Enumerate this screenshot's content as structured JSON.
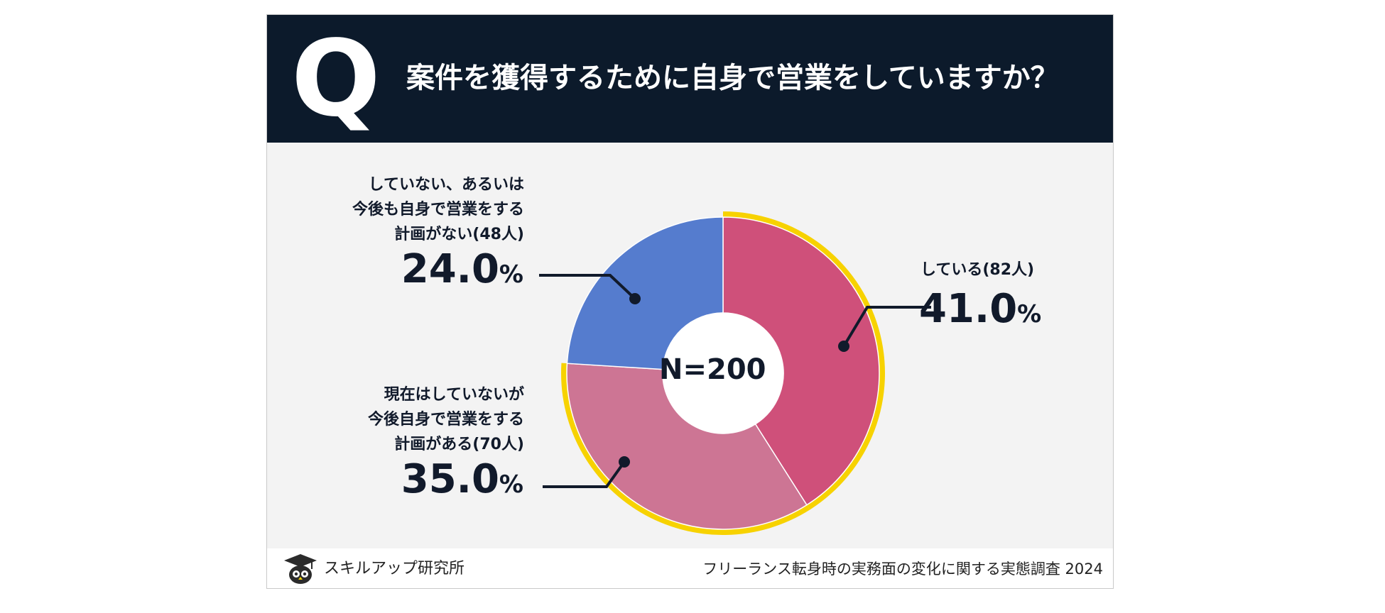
{
  "header": {
    "q_mark": "Q",
    "question": "案件を獲得するために自身で営業をしていますか？"
  },
  "chart_data": {
    "type": "pie",
    "center_label": "N=200",
    "slices": [
      {
        "label": "している(82人)",
        "value": 41.0,
        "value_text": "41.0",
        "unit": "%",
        "color": "#cf507a",
        "highlighted": true
      },
      {
        "label": "現在はしていないが\n今後自身で営業をする\n計画がある(70人)",
        "value": 35.0,
        "value_text": "35.0",
        "unit": "%",
        "color": "#cd7594",
        "highlighted": true
      },
      {
        "label": "していない、あるいは\n今後も自身で営業をする\n計画がない(48人)",
        "value": 24.0,
        "value_text": "24.0",
        "unit": "%",
        "color": "#557cce",
        "highlighted": false
      }
    ],
    "highlight_color": "#f7d200"
  },
  "footer": {
    "logo_text": "スキルアップ研究所",
    "caption": "フリーランス転身時の実務面の変化に関する実態調査 2024"
  }
}
